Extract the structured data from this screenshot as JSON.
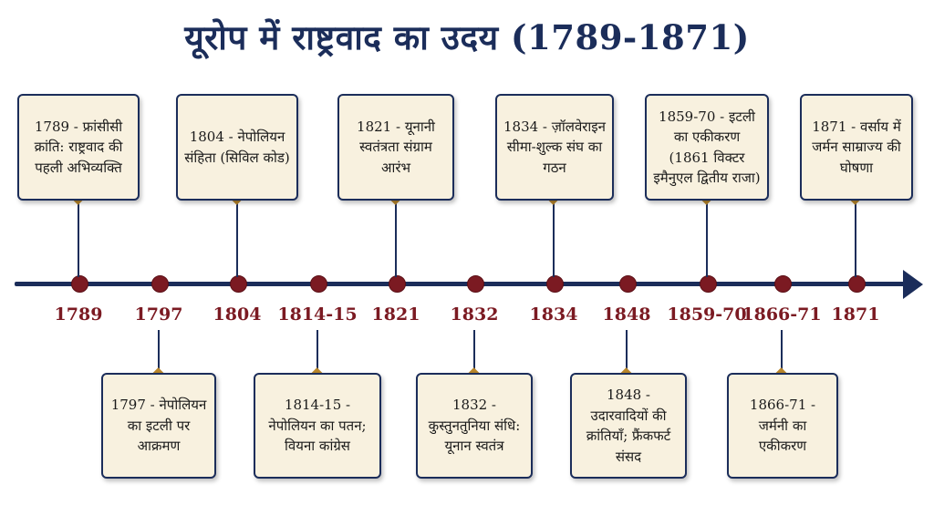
{
  "title": "यूरोप में राष्ट्रवाद का उदय (1789-1871)",
  "years": [
    "1789",
    "1797",
    "1804",
    "1814-15",
    "1821",
    "1832",
    "1834",
    "1848",
    "1859-70",
    "1866-71",
    "1871"
  ],
  "events_top": [
    "1789 - फ्रांसीसी क्रांति: राष्ट्रवाद की पहली अभिव्यक्ति",
    "1804 - नेपोलियन संहिता (सिविल कोड)",
    "1821 - यूनानी स्वतंत्रता संग्राम आरंभ",
    "1834 - ज़ॉलवेराइन सीमा-शुल्क संघ का गठन",
    "1859-70 - इटली का एकीकरण (1861 विक्टर इमैनुएल द्वितीय राजा)",
    "1871 - वर्साय में जर्मन साम्राज्य की घोषणा"
  ],
  "events_bottom": [
    "1797 - नेपोलियन का इटली पर आक्रमण",
    "1814-15 - नेपोलियन का पतन; वियना कांग्रेस",
    "1832 - कुस्तुनतुनिया संधि: यूनान स्वतंत्र",
    "1848 - उदारवादियों की क्रांतियाँ; फ्रैंकफर्ट संसद",
    "1866-71 - जर्मनी का एकीकरण"
  ]
}
